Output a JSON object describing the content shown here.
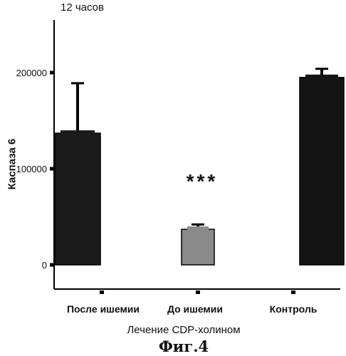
{
  "chart_data": {
    "type": "bar",
    "title": "12 часов",
    "ylabel": "Каспаза 6",
    "xlabel": "Лечение CDP-холином",
    "categories": [
      "После ишемии",
      "До ишемии",
      "Контроль"
    ],
    "values": [
      137000,
      37000,
      195000
    ],
    "error": [
      52000,
      5000,
      9000
    ],
    "ylim": [
      0,
      250000
    ],
    "yticks": [
      0,
      100000,
      200000
    ],
    "annotations": [
      {
        "category": "До ишемии",
        "text": "***"
      }
    ],
    "bar_colors": [
      "#1b1b1b",
      "#8a8a8a",
      "#141414"
    ]
  },
  "figure_caption": "Фиг.4"
}
